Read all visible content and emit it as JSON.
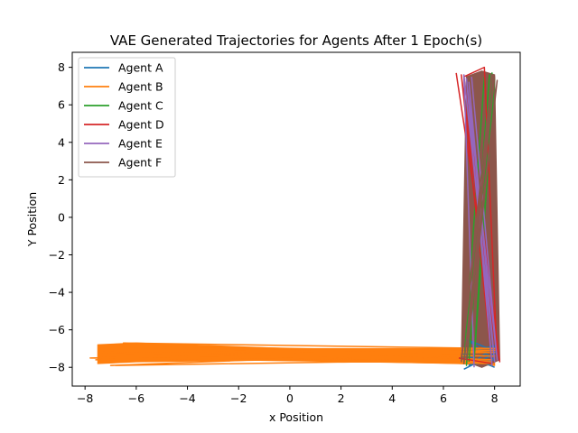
{
  "chart_data": {
    "type": "line",
    "title": "VAE Generated Trajectories for Agents After 1 Epoch(s)",
    "xlabel": "x Position",
    "ylabel": "Y Position",
    "xlim": [
      -8.5,
      9.0
    ],
    "ylim": [
      -9.0,
      8.8
    ],
    "xticks": [
      -8,
      -6,
      -4,
      -2,
      0,
      2,
      4,
      6,
      8
    ],
    "yticks": [
      -8,
      -6,
      -4,
      -2,
      0,
      2,
      4,
      6,
      8
    ],
    "grid": false,
    "legend_position": "top-left",
    "series": [
      {
        "name": "Agent A",
        "color": "#1f77b4",
        "x": [
          6.8,
          8.1,
          6.9,
          8.0,
          7.0,
          8.1,
          6.8,
          8.0
        ],
        "y": [
          -8.1,
          -7.2,
          -6.5,
          -7.6,
          -7.9,
          -6.8,
          -7.3,
          -8.0
        ]
      },
      {
        "name": "Agent B",
        "color": "#ff7f0e",
        "x": [
          -7.6,
          8.0,
          -7.3,
          7.8,
          -6.9,
          8.1,
          -6.5,
          7.9,
          -7.0,
          8.0,
          -7.8,
          7.7,
          -6.2,
          8.0,
          -7.4,
          7.9
        ],
        "y": [
          -7.6,
          -7.2,
          -6.8,
          -7.8,
          -7.5,
          -7.0,
          -6.7,
          -7.6,
          -7.9,
          -7.1,
          -7.5,
          -7.7,
          -6.9,
          -7.4,
          -7.2,
          -7.7
        ]
      },
      {
        "name": "Agent C",
        "color": "#2ca02c",
        "x": [
          7.0,
          7.8,
          6.9,
          8.0,
          7.2,
          7.9,
          6.8,
          7.6
        ],
        "y": [
          -7.7,
          7.6,
          -7.9,
          7.4,
          -7.6,
          7.7,
          -7.8,
          7.5
        ]
      },
      {
        "name": "Agent D",
        "color": "#d62728",
        "x": [
          6.5,
          8.2,
          6.8,
          7.6,
          8.1,
          6.7,
          7.9,
          6.6
        ],
        "y": [
          7.7,
          -7.7,
          7.5,
          8.0,
          -7.6,
          7.6,
          -7.8,
          -7.5
        ]
      },
      {
        "name": "Agent E",
        "color": "#9467bd",
        "x": [
          7.2,
          6.8,
          8.0,
          7.0,
          7.9,
          6.9,
          8.1,
          7.1
        ],
        "y": [
          -8.0,
          7.6,
          -7.7,
          7.2,
          -7.9,
          7.4,
          -7.6,
          7.5
        ]
      },
      {
        "name": "Agent F",
        "color": "#8c564b",
        "x": [
          6.7,
          8.0,
          6.8,
          8.1,
          6.9,
          7.9,
          6.7,
          8.0
        ],
        "y": [
          -7.5,
          7.5,
          -7.8,
          7.3,
          -7.6,
          7.6,
          -7.7,
          7.4
        ]
      }
    ],
    "filled_bands": [
      {
        "series": "Agent B",
        "color": "#ff7f0e",
        "top": [
          [
            -7.5,
            -6.8
          ],
          [
            -6.0,
            -6.7
          ],
          [
            0.0,
            -7.0
          ],
          [
            6.6,
            -7.0
          ],
          [
            8.0,
            -7.1
          ]
        ],
        "bottom": [
          [
            8.0,
            -7.9
          ],
          [
            6.6,
            -7.8
          ],
          [
            0.0,
            -7.6
          ],
          [
            -6.0,
            -7.7
          ],
          [
            -7.5,
            -7.8
          ]
        ]
      },
      {
        "series": "Agent F",
        "color": "#8c564b",
        "top": [
          [
            6.9,
            7.5
          ],
          [
            7.5,
            7.8
          ],
          [
            8.0,
            7.6
          ]
        ],
        "bottom": [
          [
            8.2,
            -7.6
          ],
          [
            7.5,
            -8.0
          ],
          [
            6.7,
            -7.6
          ]
        ]
      }
    ]
  }
}
